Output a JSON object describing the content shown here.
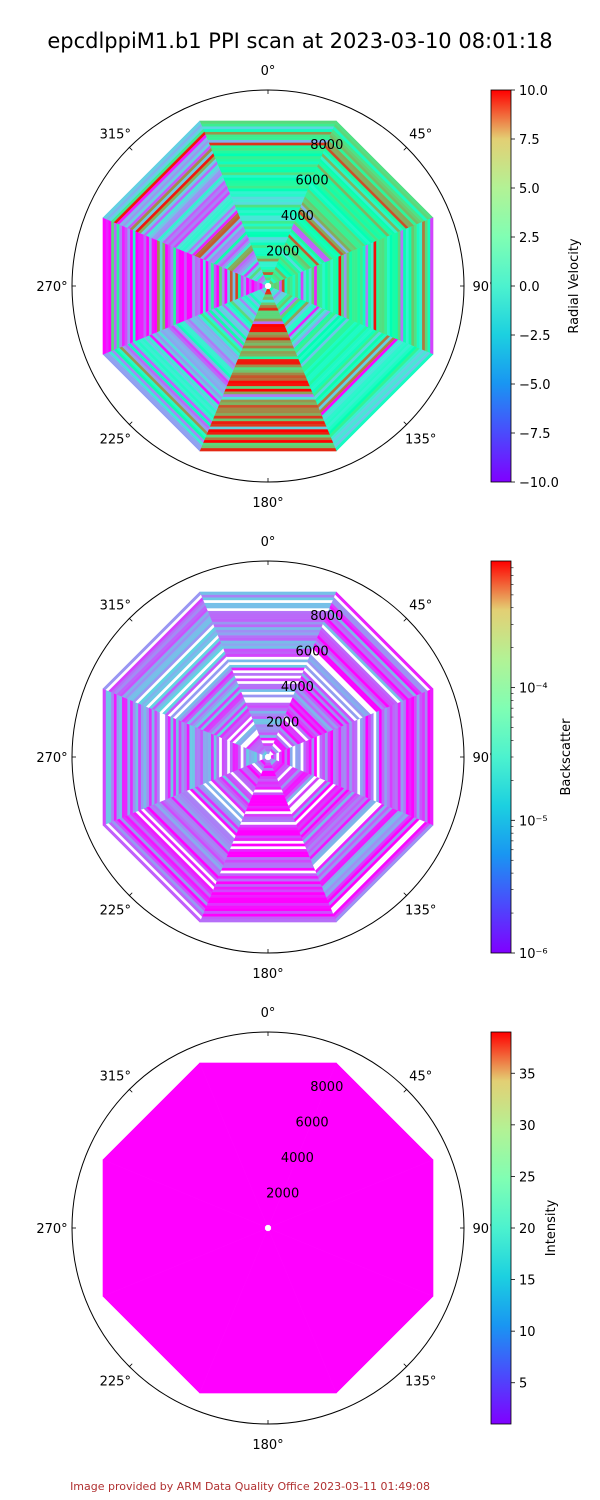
{
  "figure": {
    "title": "epcdlppiM1.b1 PPI scan at 2023-03-10 08:01:18",
    "credit": "Image provided by ARM Data Quality Office 2023-03-11 01:49:08"
  },
  "chart_data": [
    {
      "type": "heatmap",
      "projection": "polar",
      "theta_zero": "N",
      "theta_direction": "clockwise",
      "angle_ticks": [
        "0°",
        "45°",
        "90°",
        "135°",
        "180°",
        "225°",
        "270°",
        "315°"
      ],
      "radial_ticks": [
        2000,
        4000,
        6000,
        8000
      ],
      "rlim": [
        0,
        10200
      ],
      "grid": false,
      "colormap": "rainbow",
      "colorbar": {
        "label": "Radial Velocity",
        "scale": "linear",
        "range": [
          -10.0,
          10.0
        ],
        "ticks": [
          -10.0,
          -7.5,
          -5.0,
          -2.5,
          0.0,
          2.5,
          5.0,
          7.5,
          10.0
        ],
        "tick_labels": [
          "−10.0",
          "−7.5",
          "−5.0",
          "−2.5",
          "0.0",
          "2.5",
          "5.0",
          "7.5",
          "10.0"
        ]
      },
      "sector_values": [
        {
          "sector": "N",
          "dominant": 0.0
        },
        {
          "sector": "NE",
          "dominant": 2.0
        },
        {
          "sector": "E",
          "dominant": 1.0
        },
        {
          "sector": "SE",
          "dominant": -1.0
        },
        {
          "sector": "S",
          "dominant": 7.0
        },
        {
          "sector": "SW",
          "dominant": -4.0
        },
        {
          "sector": "W",
          "dominant": -8.5
        },
        {
          "sector": "NW",
          "dominant": -5.0
        }
      ]
    },
    {
      "type": "heatmap",
      "projection": "polar",
      "theta_zero": "N",
      "theta_direction": "clockwise",
      "angle_ticks": [
        "0°",
        "45°",
        "90°",
        "135°",
        "180°",
        "225°",
        "270°",
        "315°"
      ],
      "radial_ticks": [
        2000,
        4000,
        6000,
        8000
      ],
      "rlim": [
        0,
        10200
      ],
      "grid": false,
      "colormap": "rainbow",
      "colorbar": {
        "label": "Backscatter",
        "scale": "log",
        "range": [
          1e-06,
          0.0009
        ],
        "ticks": [
          1e-06,
          1e-05,
          0.0001
        ],
        "tick_labels": [
          "10⁻⁶",
          "10⁻⁵",
          "10⁻⁴"
        ]
      },
      "sector_values": [
        {
          "sector": "N",
          "dominant": 3e-06
        },
        {
          "sector": "NE",
          "dominant": 2.5e-06
        },
        {
          "sector": "E",
          "dominant": 2e-06
        },
        {
          "sector": "SE",
          "dominant": 2.5e-06
        },
        {
          "sector": "S",
          "dominant": 1.2e-06
        },
        {
          "sector": "SW",
          "dominant": 2.5e-06
        },
        {
          "sector": "W",
          "dominant": 3e-06
        },
        {
          "sector": "NW",
          "dominant": 3.5e-06
        }
      ]
    },
    {
      "type": "heatmap",
      "projection": "polar",
      "theta_zero": "N",
      "theta_direction": "clockwise",
      "angle_ticks": [
        "0°",
        "45°",
        "90°",
        "135°",
        "180°",
        "225°",
        "270°",
        "315°"
      ],
      "radial_ticks": [
        2000,
        4000,
        6000,
        8000
      ],
      "rlim": [
        0,
        10200
      ],
      "grid": false,
      "colormap": "rainbow",
      "colorbar": {
        "label": "Intensity",
        "scale": "linear",
        "range": [
          1.0,
          39.0
        ],
        "ticks": [
          5,
          10,
          15,
          20,
          25,
          30,
          35
        ],
        "tick_labels": [
          "5",
          "10",
          "15",
          "20",
          "25",
          "30",
          "35"
        ]
      },
      "sector_values": [
        {
          "sector": "all",
          "dominant": 1.0
        }
      ]
    }
  ]
}
